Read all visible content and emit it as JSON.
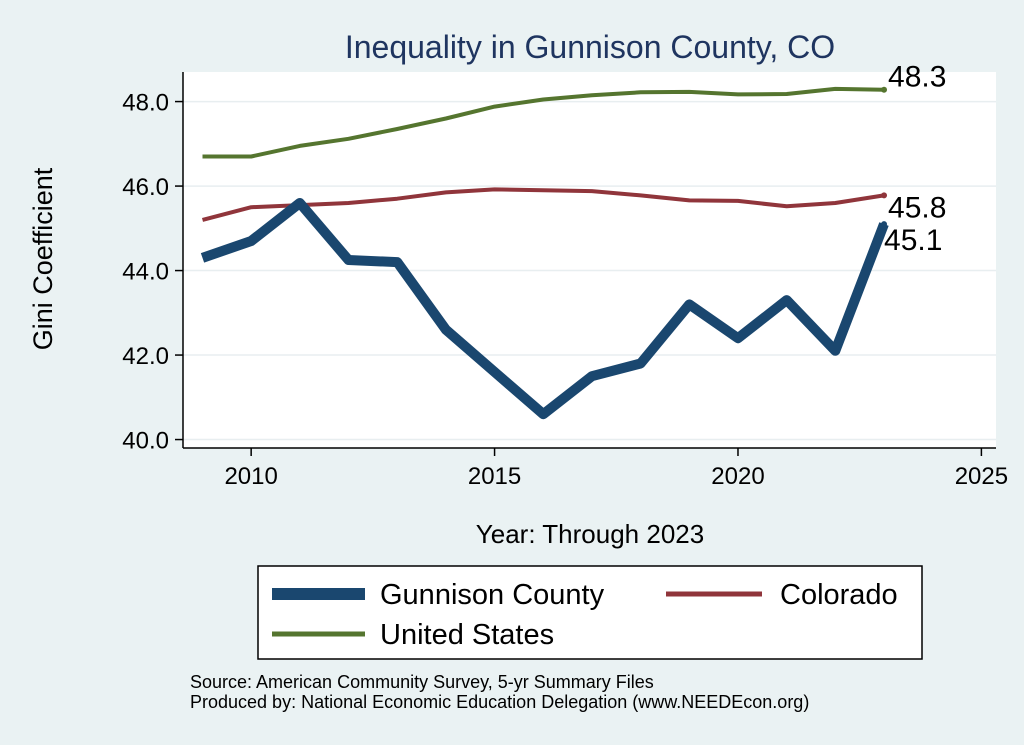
{
  "chart_data": {
    "type": "line",
    "title": "Inequality in Gunnison County, CO",
    "xlabel": "Year: Through 2023",
    "ylabel": "Gini Coefficient",
    "xlim": [
      2008.6,
      2025.3
    ],
    "ylim": [
      39.8,
      48.7
    ],
    "x_ticks": [
      2010,
      2015,
      2020,
      2025
    ],
    "y_ticks": [
      40.0,
      42.0,
      44.0,
      46.0,
      48.0
    ],
    "grid": true,
    "legend_position": "bottom",
    "colors": {
      "background": "#eaf2f3",
      "plot_background": "#ffffff",
      "title": "#1f3560",
      "grid": "#e8eef0"
    },
    "series": [
      {
        "name": "Gunnison County",
        "color": "#1a476f",
        "x": [
          2009,
          2010,
          2011,
          2012,
          2013,
          2014,
          2015,
          2016,
          2017,
          2018,
          2019,
          2020,
          2021,
          2022,
          2023
        ],
        "values": [
          44.3,
          44.7,
          45.6,
          44.25,
          44.2,
          42.6,
          41.6,
          40.6,
          41.5,
          41.8,
          43.2,
          42.4,
          43.3,
          42.1,
          45.1
        ],
        "end_label": "45.1"
      },
      {
        "name": "Colorado",
        "color": "#90353b",
        "x": [
          2009,
          2010,
          2011,
          2012,
          2013,
          2014,
          2015,
          2016,
          2017,
          2018,
          2019,
          2020,
          2021,
          2022,
          2023
        ],
        "values": [
          45.2,
          45.5,
          45.55,
          45.6,
          45.7,
          45.85,
          45.92,
          45.9,
          45.88,
          45.78,
          45.66,
          45.65,
          45.52,
          45.6,
          45.78
        ],
        "end_label": "45.8"
      },
      {
        "name": "United States",
        "color": "#55752f",
        "x": [
          2009,
          2010,
          2011,
          2012,
          2013,
          2014,
          2015,
          2016,
          2017,
          2018,
          2019,
          2020,
          2021,
          2022,
          2023
        ],
        "values": [
          46.7,
          46.7,
          46.95,
          47.12,
          47.35,
          47.6,
          47.88,
          48.05,
          48.15,
          48.22,
          48.23,
          48.17,
          48.18,
          48.3,
          48.28
        ],
        "end_label": "48.3"
      }
    ],
    "notes": [
      "Source: American Community Survey, 5-yr Summary Files",
      "Produced by: National Economic Education Delegation (www.NEEDEcon.org)"
    ]
  }
}
